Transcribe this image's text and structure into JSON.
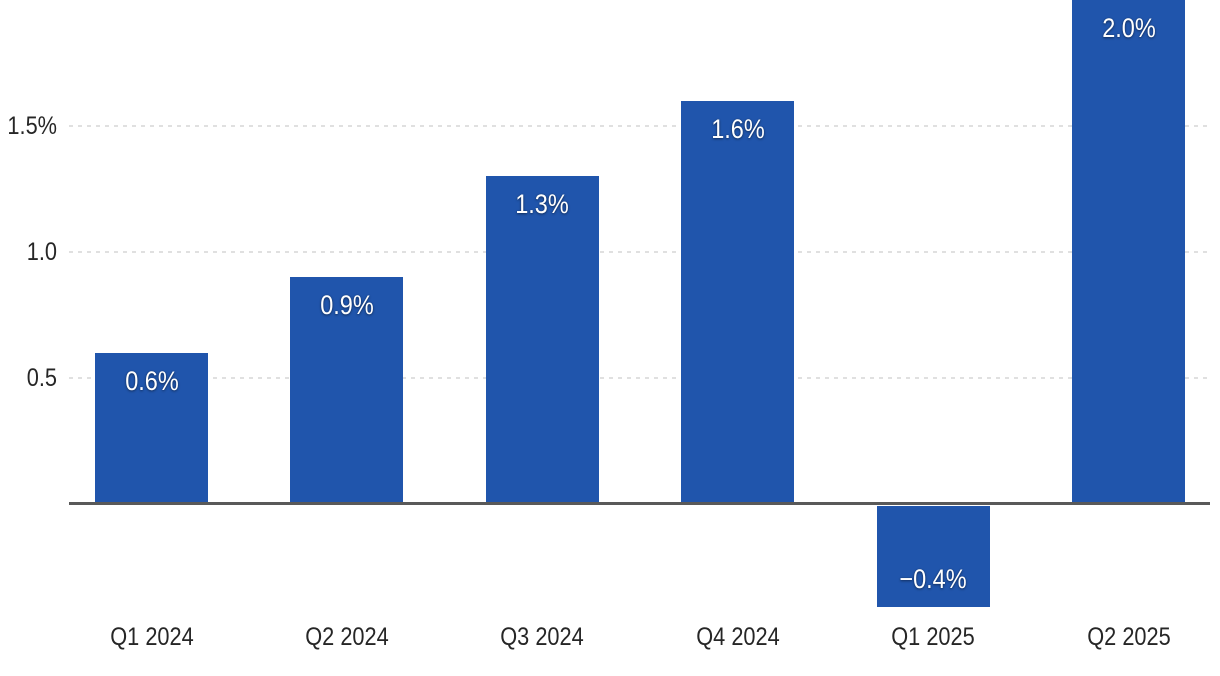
{
  "chart_data": {
    "type": "bar",
    "title": "",
    "xlabel": "",
    "ylabel": "",
    "categories": [
      "Q1 2024",
      "Q2 2024",
      "Q3 2024",
      "Q4 2024",
      "Q1 2025",
      "Q2 2025"
    ],
    "values": [
      0.6,
      0.9,
      1.3,
      1.6,
      -0.4,
      2.0
    ],
    "bar_labels": [
      "0.6%",
      "0.9%",
      "1.3%",
      "1.6%",
      "−0.4%",
      "2.0%"
    ],
    "yticks": [
      {
        "value": 0.5,
        "label": "0.5"
      },
      {
        "value": 1.0,
        "label": "1.0"
      },
      {
        "value": 1.5,
        "label": "1.5%"
      }
    ],
    "ylim": [
      -0.65,
      2.0
    ],
    "grid": "horizontal-dashed",
    "legend": "none",
    "colors": {
      "bar": "#2055AC",
      "grid": "#E0E0E0",
      "axis": "#595959",
      "tick_text": "#262626",
      "bar_label_text": "#FFFFFF",
      "background": "#FFFFFF"
    }
  }
}
